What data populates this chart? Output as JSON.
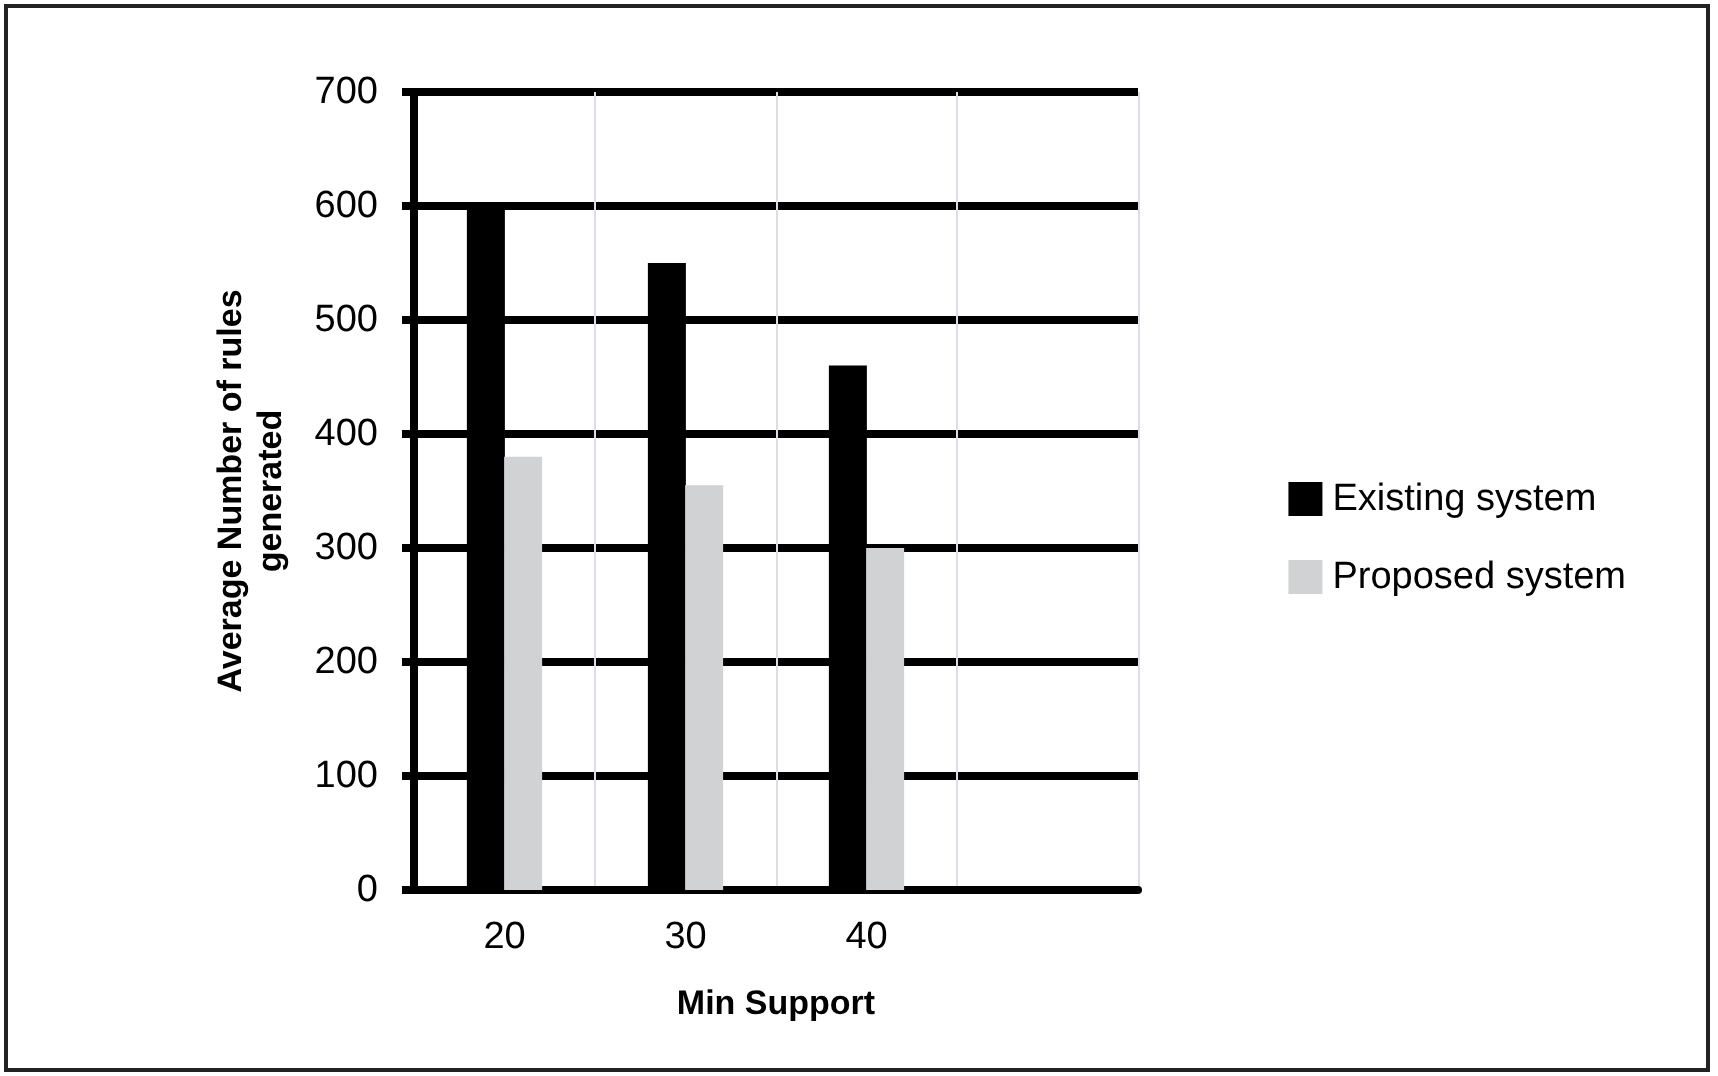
{
  "chart_data": {
    "type": "bar",
    "xlabel": "Min Support",
    "ylabel": "Average Number of rules\ngenerated",
    "categories": [
      "20",
      "30",
      "40",
      null
    ],
    "series": [
      {
        "name": "Existing system",
        "color": "#000000",
        "values": [
          600,
          550,
          460,
          null
        ]
      },
      {
        "name": "Proposed system",
        "color": "#d1d2d4",
        "values": [
          380,
          355,
          300,
          null
        ]
      }
    ],
    "ylim": [
      0,
      700
    ],
    "yticks": [
      0,
      100,
      200,
      300,
      400,
      500,
      600,
      700
    ],
    "grid": true,
    "legend": "right"
  }
}
